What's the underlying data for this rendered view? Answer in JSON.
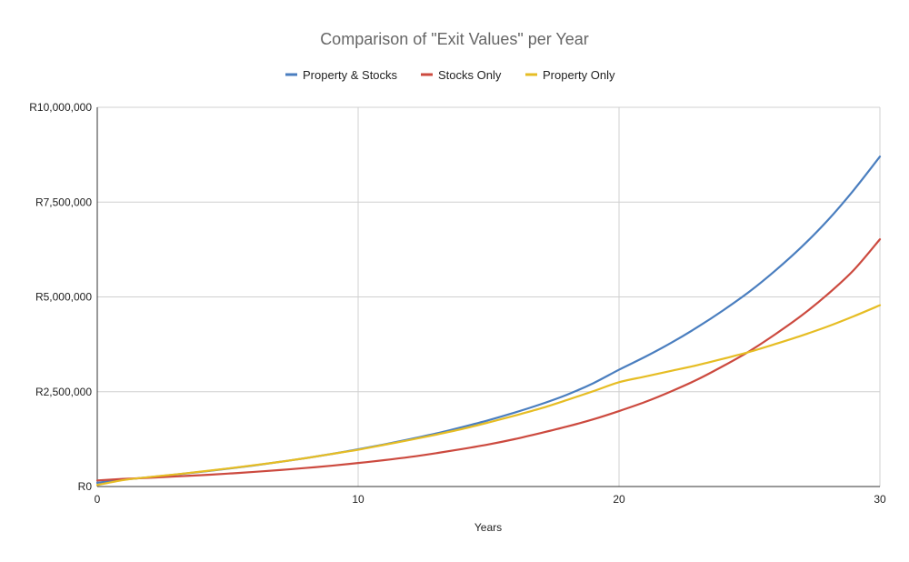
{
  "chart_data": {
    "type": "line",
    "title": "Comparison of \"Exit Values\" per Year",
    "xlabel": "Years",
    "ylabel": "",
    "xlim": [
      0,
      30
    ],
    "ylim": [
      0,
      10000000
    ],
    "x_ticks": [
      0,
      10,
      20,
      30
    ],
    "y_ticks": [
      0,
      2500000,
      5000000,
      7500000,
      10000000
    ],
    "y_tick_labels": [
      "R0",
      "R2,500,000",
      "R5,000,000",
      "R7,500,000",
      "R10,000,000"
    ],
    "grid": true,
    "legend_position": "top",
    "x": [
      0,
      1,
      2,
      3,
      4,
      5,
      6,
      7,
      8,
      9,
      10,
      11,
      12,
      13,
      14,
      15,
      16,
      17,
      18,
      19,
      20,
      21,
      22,
      23,
      24,
      25,
      26,
      27,
      28,
      29,
      30
    ],
    "series": [
      {
        "name": "Property & Stocks",
        "color": "#4a7ebf",
        "values": [
          100000,
          180000,
          245000,
          315000,
          390000,
          470000,
          555000,
          650000,
          750000,
          860000,
          980000,
          1110000,
          1250000,
          1400000,
          1570000,
          1750000,
          1950000,
          2170000,
          2420000,
          2720000,
          3080000,
          3420000,
          3790000,
          4200000,
          4650000,
          5140000,
          5700000,
          6320000,
          7020000,
          7820000,
          8700000
        ]
      },
      {
        "name": "Stocks Only",
        "color": "#cc4a3f",
        "values": [
          160000,
          200000,
          230000,
          265000,
          300000,
          340000,
          385000,
          435000,
          490000,
          550000,
          620000,
          695000,
          780000,
          880000,
          990000,
          1110000,
          1250000,
          1410000,
          1580000,
          1770000,
          1990000,
          2230000,
          2510000,
          2820000,
          3180000,
          3570000,
          4020000,
          4510000,
          5070000,
          5710000,
          6520000
        ]
      },
      {
        "name": "Property Only",
        "color": "#e6bd24",
        "values": [
          40000,
          170000,
          250000,
          320000,
          395000,
          475000,
          560000,
          650000,
          750000,
          860000,
          970000,
          1100000,
          1230000,
          1370000,
          1520000,
          1690000,
          1870000,
          2060000,
          2280000,
          2510000,
          2750000,
          2900000,
          3050000,
          3200000,
          3370000,
          3550000,
          3760000,
          3980000,
          4220000,
          4490000,
          4780000
        ]
      }
    ]
  }
}
